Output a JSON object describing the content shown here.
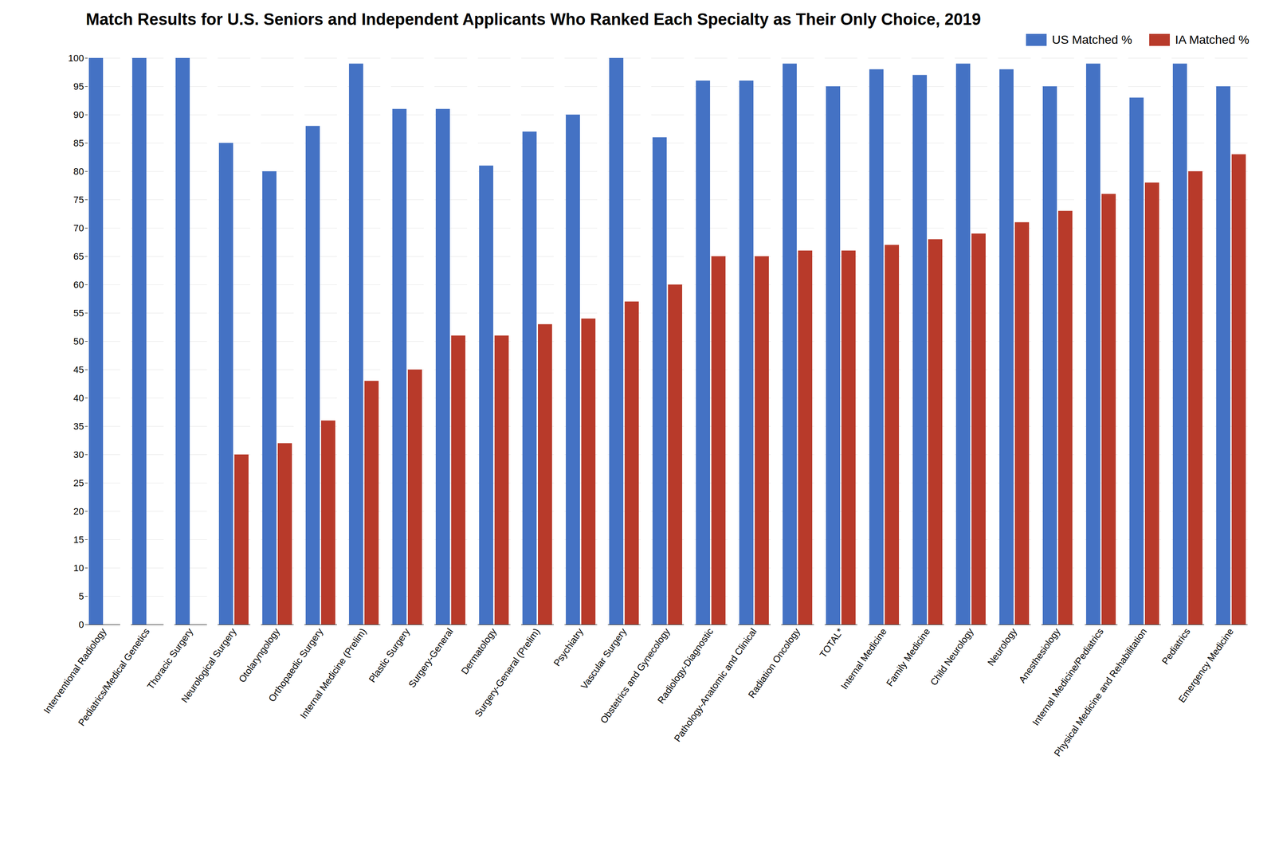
{
  "chart_data": {
    "type": "bar",
    "title": "Match Results for U.S. Seniors and Independent Applicants Who Ranked Each Specialty as Their Only Choice, 2019",
    "categories": [
      "Interventional Radiology",
      "Pediatrics/Medical Genetics",
      "Thoracic Surgery",
      "Neurological Surgery",
      "Otolaryngology",
      "Orthopaedic Surgery",
      "Internal Medicine (Prelim)",
      "Plastic Surgery",
      "Surgery-General",
      "Dermatology",
      "Surgery-General (Prelim)",
      "Psychiatry",
      "Vascular Surgery",
      "Obstetrics and Gynecology",
      "Radiology-Diagnostic",
      "Pathology-Anatomic and Clinical",
      "Radiation Oncology",
      "TOTAL*",
      "Internal Medicine",
      "Family Medicine",
      "Child Neurology",
      "Neurology",
      "Anesthesiology",
      "Internal Medicine/Pediatrics",
      "Physical Medicine and Rehabilitation",
      "Pediatrics",
      "Emergency Medicine"
    ],
    "series": [
      {
        "name": "US Matched %",
        "color": "#4472C4",
        "values": [
          100,
          100,
          100,
          85,
          80,
          88,
          99,
          91,
          91,
          81,
          87,
          90,
          100,
          86,
          96,
          96,
          99,
          95,
          98,
          97,
          99,
          98,
          95,
          99,
          93,
          99,
          95
        ]
      },
      {
        "name": "IA Matched %",
        "color": "#B83A2A",
        "values": [
          null,
          null,
          null,
          30,
          32,
          36,
          43,
          45,
          51,
          51,
          53,
          54,
          57,
          60,
          65,
          65,
          66,
          66,
          67,
          68,
          69,
          71,
          73,
          76,
          78,
          80,
          83
        ]
      }
    ],
    "ylim": [
      0,
      100
    ],
    "yticks": [
      0,
      5,
      10,
      15,
      20,
      25,
      30,
      35,
      40,
      45,
      50,
      55,
      60,
      65,
      70,
      75,
      80,
      85,
      90,
      95,
      100
    ],
    "grid": true,
    "legend": "upper right"
  }
}
